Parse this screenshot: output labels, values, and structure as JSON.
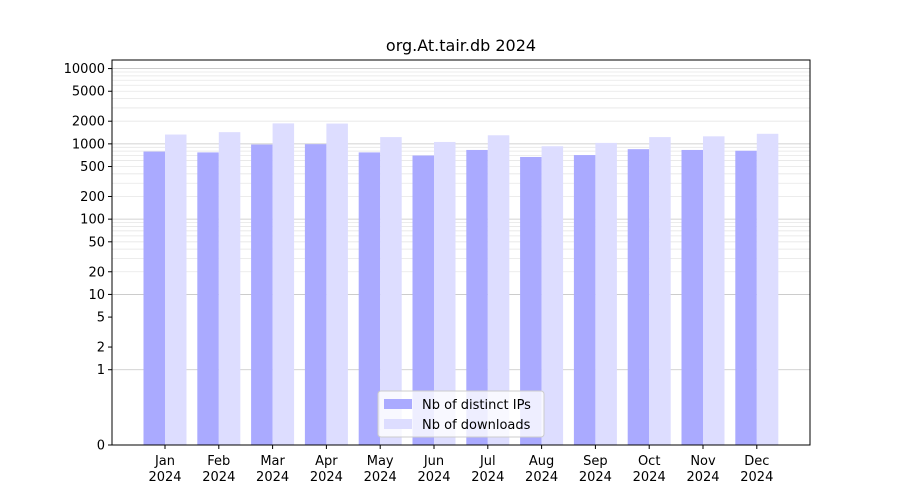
{
  "chart_data": {
    "type": "bar",
    "title": "org.At.tair.db 2024",
    "xlabel": "",
    "ylabel": "",
    "yscale": "symlog",
    "ylim": [
      0,
      13000
    ],
    "yticks": [
      0,
      1,
      2,
      5,
      10,
      20,
      50,
      100,
      200,
      500,
      1000,
      2000,
      5000,
      10000
    ],
    "grid": true,
    "legend_position": "bottom-center",
    "categories": [
      "Jan\n2024",
      "Feb\n2024",
      "Mar\n2024",
      "Apr\n2024",
      "May\n2024",
      "Jun\n2024",
      "Jul\n2024",
      "Aug\n2024",
      "Sep\n2024",
      "Oct\n2024",
      "Nov\n2024",
      "Dec\n2024"
    ],
    "series": [
      {
        "name": "Nb of distinct IPs",
        "color": "#aaaaff",
        "values": [
          790,
          770,
          980,
          990,
          770,
          700,
          830,
          670,
          710,
          850,
          830,
          810
        ]
      },
      {
        "name": "Nb of downloads",
        "color": "#ddddff",
        "values": [
          1330,
          1430,
          1870,
          1860,
          1230,
          1060,
          1300,
          930,
          1030,
          1230,
          1260,
          1360
        ]
      }
    ]
  }
}
